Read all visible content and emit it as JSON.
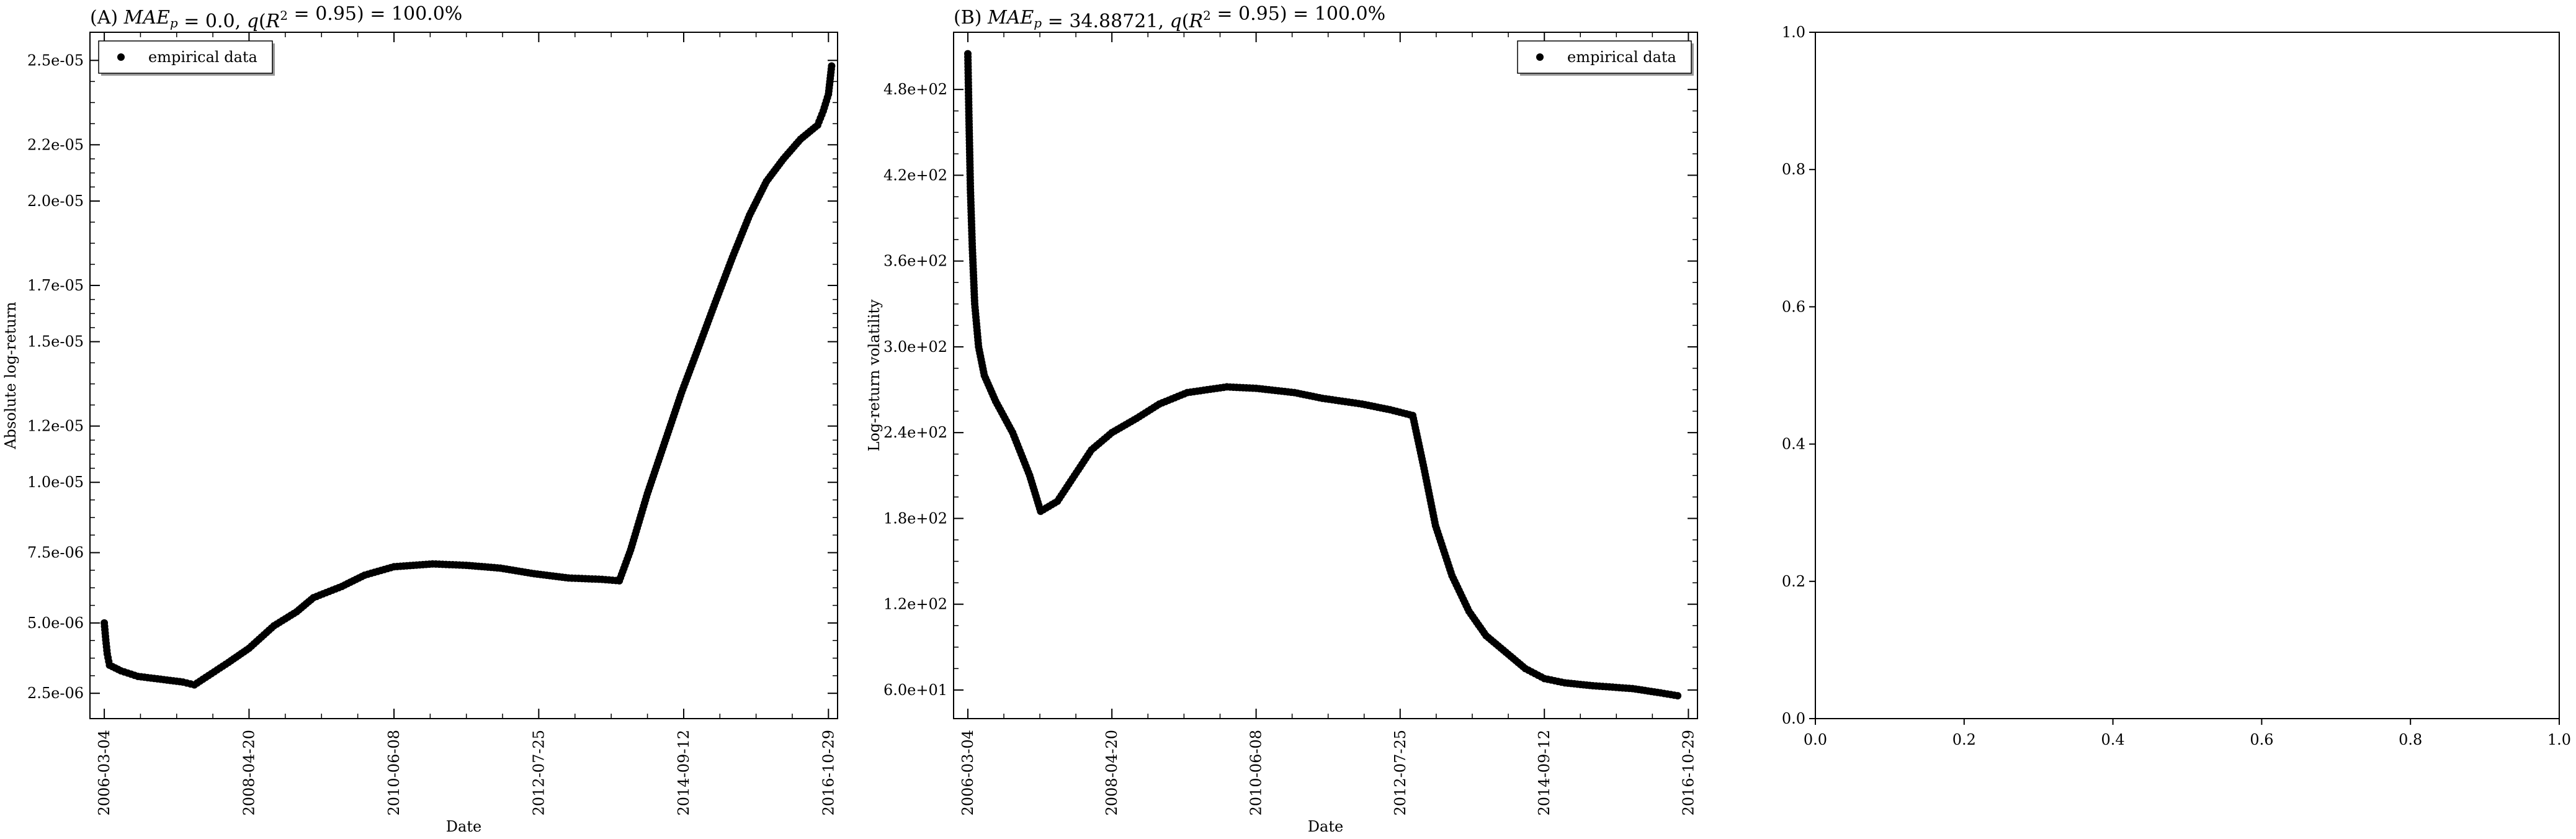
{
  "chart_data": [
    {
      "panel": "A",
      "type": "scatter",
      "title": "(A) MAE_p = 0.0, q(R^2 = 0.95) = 100.0%",
      "xlabel": "Date",
      "ylabel": "Absolute log-return",
      "x_ticks": [
        "2006-03-04",
        "2008-04-20",
        "2010-06-08",
        "2012-07-25",
        "2014-09-12",
        "2016-10-29"
      ],
      "xlim": [
        "2005-12-17",
        "2016-12-17"
      ],
      "y_ticks": [
        "2.5e-06",
        "5.0e-06",
        "7.5e-06",
        "1.0e-05",
        "1.2e-05",
        "1.5e-05",
        "1.7e-05",
        "2.0e-05",
        "2.2e-05",
        "2.5e-05"
      ],
      "ylim": [
        1.6e-06,
        2.6e-05
      ],
      "legend": {
        "label": "empirical data",
        "position": "top-left"
      },
      "series": [
        {
          "name": "empirical data",
          "points": [
            [
              "2006-03-04",
              5e-06
            ],
            [
              "2006-03-12",
              4.4e-06
            ],
            [
              "2006-03-20",
              3.9e-06
            ],
            [
              "2006-04-01",
              3.5e-06
            ],
            [
              "2006-06-01",
              3.3e-06
            ],
            [
              "2006-09-01",
              3.1e-06
            ],
            [
              "2007-01-01",
              3e-06
            ],
            [
              "2007-05-01",
              2.9e-06
            ],
            [
              "2007-07-01",
              2.8e-06
            ],
            [
              "2007-10-01",
              3.2e-06
            ],
            [
              "2008-01-01",
              3.6e-06
            ],
            [
              "2008-04-20",
              4.1e-06
            ],
            [
              "2008-09-01",
              4.9e-06
            ],
            [
              "2009-01-01",
              5.4e-06
            ],
            [
              "2009-04-01",
              5.9e-06
            ],
            [
              "2009-09-01",
              6.3e-06
            ],
            [
              "2010-01-01",
              6.7e-06
            ],
            [
              "2010-06-08",
              7e-06
            ],
            [
              "2011-01-01",
              7.1e-06
            ],
            [
              "2011-07-01",
              7.05e-06
            ],
            [
              "2012-01-01",
              6.95e-06
            ],
            [
              "2012-07-01",
              6.75e-06
            ],
            [
              "2013-01-01",
              6.6e-06
            ],
            [
              "2013-07-01",
              6.55e-06
            ],
            [
              "2013-10-01",
              6.5e-06
            ],
            [
              "2013-12-01",
              7.6e-06
            ],
            [
              "2014-03-01",
              9.6e-06
            ],
            [
              "2014-06-01",
              1.14e-05
            ],
            [
              "2014-09-01",
              1.32e-05
            ],
            [
              "2014-12-01",
              1.48e-05
            ],
            [
              "2015-03-01",
              1.64e-05
            ],
            [
              "2015-06-01",
              1.8e-05
            ],
            [
              "2015-09-01",
              1.95e-05
            ],
            [
              "2015-12-01",
              2.07e-05
            ],
            [
              "2016-03-01",
              2.15e-05
            ],
            [
              "2016-06-01",
              2.22e-05
            ],
            [
              "2016-09-01",
              2.27e-05
            ],
            [
              "2016-10-01",
              2.32e-05
            ],
            [
              "2016-10-29",
              2.38e-05
            ],
            [
              "2016-11-15",
              2.48e-05
            ]
          ]
        }
      ]
    },
    {
      "panel": "B",
      "type": "scatter",
      "title": "(B) MAE_p = 34.88721, q(R^2 = 0.95) = 100.0%",
      "xlabel": "Date",
      "ylabel": "Log-return volatility",
      "x_ticks": [
        "2006-03-04",
        "2008-04-20",
        "2010-06-08",
        "2012-07-25",
        "2014-09-12",
        "2016-10-29"
      ],
      "xlim": [
        "2005-12-17",
        "2016-12-17"
      ],
      "y_ticks": [
        "6.0e+01",
        "1.2e+02",
        "1.8e+02",
        "2.4e+02",
        "3.0e+02",
        "3.6e+02",
        "4.2e+02",
        "4.8e+02"
      ],
      "ylim": [
        40,
        520
      ],
      "legend": {
        "label": "empirical data",
        "position": "top-right"
      },
      "series": [
        {
          "name": "empirical data",
          "points": [
            [
              "2006-03-04",
              505
            ],
            [
              "2006-03-10",
              460
            ],
            [
              "2006-03-18",
              410
            ],
            [
              "2006-03-28",
              370
            ],
            [
              "2006-04-10",
              330
            ],
            [
              "2006-05-01",
              300
            ],
            [
              "2006-06-01",
              280
            ],
            [
              "2006-08-01",
              262
            ],
            [
              "2006-11-01",
              240
            ],
            [
              "2007-02-01",
              210
            ],
            [
              "2007-04-01",
              185
            ],
            [
              "2007-07-01",
              192
            ],
            [
              "2007-10-01",
              210
            ],
            [
              "2008-01-01",
              228
            ],
            [
              "2008-04-20",
              240
            ],
            [
              "2008-09-01",
              250
            ],
            [
              "2009-01-01",
              260
            ],
            [
              "2009-06-01",
              268
            ],
            [
              "2010-01-01",
              272
            ],
            [
              "2010-06-08",
              271
            ],
            [
              "2011-01-01",
              268
            ],
            [
              "2011-06-01",
              264
            ],
            [
              "2012-01-01",
              260
            ],
            [
              "2012-06-01",
              256
            ],
            [
              "2012-10-01",
              252
            ],
            [
              "2012-12-01",
              215
            ],
            [
              "2013-02-01",
              175
            ],
            [
              "2013-05-01",
              140
            ],
            [
              "2013-08-01",
              115
            ],
            [
              "2013-11-01",
              98
            ],
            [
              "2014-03-01",
              85
            ],
            [
              "2014-06-01",
              75
            ],
            [
              "2014-09-12",
              68
            ],
            [
              "2015-01-01",
              65
            ],
            [
              "2015-06-01",
              63
            ],
            [
              "2016-01-01",
              61
            ],
            [
              "2016-06-01",
              58
            ],
            [
              "2016-09-01",
              56
            ]
          ]
        }
      ]
    },
    {
      "panel": "C",
      "type": "scatter",
      "title": "",
      "x_ticks": [
        "0.0",
        "0.2",
        "0.4",
        "0.6",
        "0.8",
        "1.0"
      ],
      "y_ticks": [
        "0.0",
        "0.2",
        "0.4",
        "0.6",
        "0.8",
        "1.0"
      ],
      "xlim": [
        0,
        1
      ],
      "ylim": [
        0,
        1
      ],
      "series": []
    }
  ]
}
